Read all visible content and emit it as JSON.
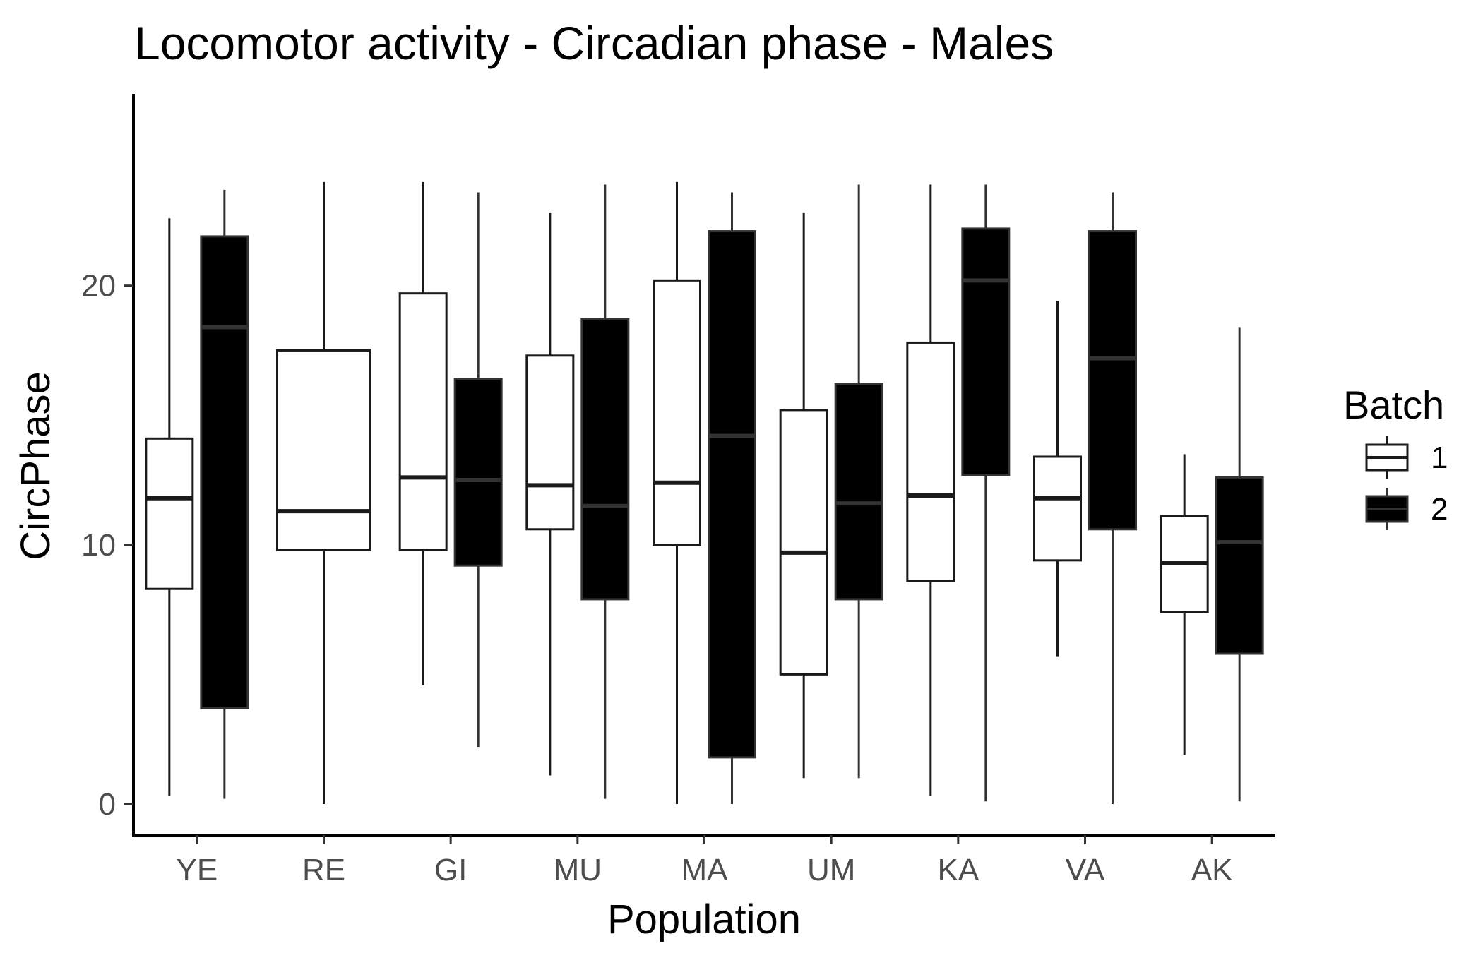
{
  "chart_data": {
    "type": "boxplot",
    "title": "Locomotor activity - Circadian phase - Males",
    "xlabel": "Population",
    "ylabel": "CircPhase",
    "categories": [
      "YE",
      "RE",
      "GI",
      "MU",
      "MA",
      "UM",
      "KA",
      "VA",
      "AK"
    ],
    "ylim": [
      -1.2,
      27.4
    ],
    "yticks": [
      0,
      10,
      20
    ],
    "grid": false,
    "legend": {
      "title": "Batch",
      "position": "right"
    },
    "series": [
      {
        "name": "1",
        "fill": "#ffffff",
        "stroke": "#1a1a1a",
        "boxes": [
          {
            "min": 0.3,
            "q1": 8.3,
            "median": 11.8,
            "q3": 14.1,
            "max": 22.6
          },
          {
            "min": 0.0,
            "q1": 9.8,
            "median": 11.3,
            "q3": 17.5,
            "max": 24.0
          },
          {
            "min": 4.6,
            "q1": 9.8,
            "median": 12.6,
            "q3": 19.7,
            "max": 24.0
          },
          {
            "min": 1.1,
            "q1": 10.6,
            "median": 12.3,
            "q3": 17.3,
            "max": 22.8
          },
          {
            "min": 0.0,
            "q1": 10.0,
            "median": 12.4,
            "q3": 20.2,
            "max": 24.0
          },
          {
            "min": 1.0,
            "q1": 5.0,
            "median": 9.7,
            "q3": 15.2,
            "max": 22.8
          },
          {
            "min": 0.3,
            "q1": 8.6,
            "median": 11.9,
            "q3": 17.8,
            "max": 23.9
          },
          {
            "min": 5.7,
            "q1": 9.4,
            "median": 11.8,
            "q3": 13.4,
            "max": 19.4
          },
          {
            "min": 1.9,
            "q1": 7.4,
            "median": 9.3,
            "q3": 11.1,
            "max": 13.5
          }
        ]
      },
      {
        "name": "2",
        "fill": "#000000",
        "stroke": "#333333",
        "boxes": [
          {
            "min": 0.2,
            "q1": 3.7,
            "median": 18.4,
            "q3": 21.9,
            "max": 23.7
          },
          null,
          {
            "min": 2.2,
            "q1": 9.2,
            "median": 12.5,
            "q3": 16.4,
            "max": 23.6
          },
          {
            "min": 0.2,
            "q1": 7.9,
            "median": 11.5,
            "q3": 18.7,
            "max": 23.9
          },
          {
            "min": 0.0,
            "q1": 1.8,
            "median": 14.2,
            "q3": 22.1,
            "max": 23.6
          },
          {
            "min": 1.0,
            "q1": 7.9,
            "median": 11.6,
            "q3": 16.2,
            "max": 23.9
          },
          {
            "min": 0.1,
            "q1": 12.7,
            "median": 20.2,
            "q3": 22.2,
            "max": 23.9
          },
          {
            "min": 0.0,
            "q1": 10.6,
            "median": 17.2,
            "q3": 22.1,
            "max": 23.6
          },
          {
            "min": 0.1,
            "q1": 5.8,
            "median": 10.1,
            "q3": 12.6,
            "max": 18.4
          }
        ]
      }
    ]
  }
}
